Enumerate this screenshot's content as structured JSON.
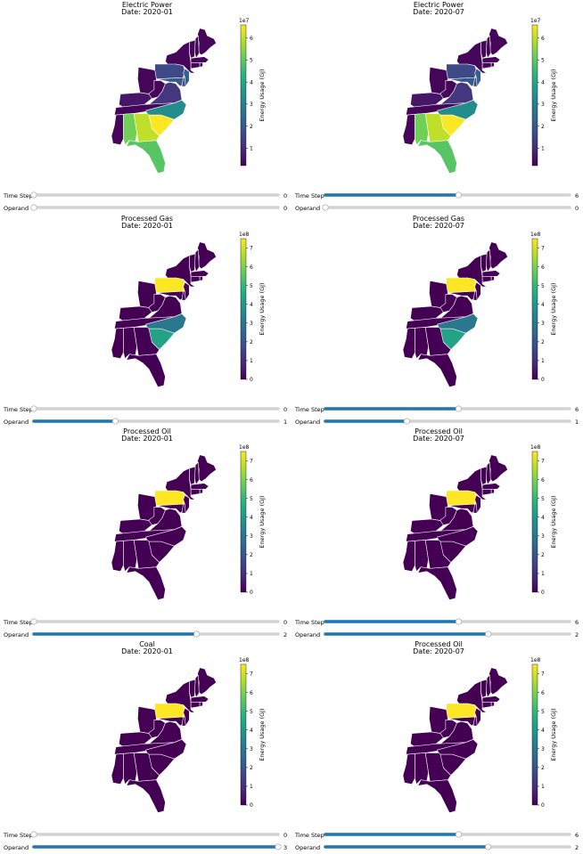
{
  "colorbar_label": "Energy Usage (GJ)",
  "slider_labels": {
    "time_step": "Time Step",
    "operand": "Operand"
  },
  "colors": {
    "background": "#ffffff",
    "state_border": "#ffffff",
    "slider_track": "#d3d3d3",
    "slider_fill": "#1f77b4",
    "slider_handle": "#ffffff",
    "slider_handle_edge": "#a0a0a0",
    "viridis": [
      "#440154",
      "#482878",
      "#3e4a89",
      "#31688e",
      "#26828e",
      "#1f9e89",
      "#35b779",
      "#6ece58",
      "#b5de2b",
      "#fde725"
    ]
  },
  "chart_data": [
    {
      "type": "heatmap",
      "title": "Electric Power",
      "date": "Date: 2020-01",
      "colorbar": {
        "exponent": "1e7",
        "ticks": [
          "1",
          "2",
          "3",
          "4",
          "5",
          "6"
        ],
        "min": 0.2,
        "max": 6.6
      },
      "states": {
        "PA": 1.6,
        "VA": 1.2,
        "KY": 0.6,
        "NJ": 2.2,
        "DE": 1.6,
        "MD": 2.0,
        "NC": 3.3,
        "SC": 6.6,
        "GA": 6.0,
        "AL": 5.2,
        "FL": 4.9
      },
      "default_value": 0.3,
      "sliders": {
        "time_step": 0,
        "operand": 0
      }
    },
    {
      "type": "heatmap",
      "title": "Electric Power",
      "date": "Date: 2020-07",
      "colorbar": {
        "exponent": "1e7",
        "ticks": [
          "1",
          "2",
          "3",
          "4",
          "5",
          "6"
        ],
        "min": 0.2,
        "max": 6.6
      },
      "states": {
        "PA": 1.6,
        "VA": 1.2,
        "KY": 0.6,
        "NJ": 2.2,
        "DE": 1.6,
        "MD": 2.0,
        "NC": 3.3,
        "SC": 6.6,
        "GA": 6.0,
        "AL": 5.2,
        "FL": 4.9
      },
      "default_value": 0.3,
      "sliders": {
        "time_step": 6,
        "operand": 0
      }
    },
    {
      "type": "heatmap",
      "title": "Processed Gas",
      "date": "Date: 2020-01",
      "colorbar": {
        "exponent": "1e8",
        "ticks": [
          "0",
          "1",
          "2",
          "3",
          "4",
          "5",
          "6",
          "7"
        ],
        "min": 0,
        "max": 7.5
      },
      "states": {
        "PA": 7.5,
        "NC": 3.0,
        "SC": 4.3
      },
      "default_value": 0,
      "sliders": {
        "time_step": 0,
        "operand": 1
      }
    },
    {
      "type": "heatmap",
      "title": "Processed Gas",
      "date": "Date: 2020-07",
      "colorbar": {
        "exponent": "1e8",
        "ticks": [
          "0",
          "1",
          "2",
          "3",
          "4",
          "5",
          "6",
          "7"
        ],
        "min": 0,
        "max": 7.5
      },
      "states": {
        "PA": 7.5,
        "NC": 3.0,
        "SC": 4.3
      },
      "default_value": 0,
      "sliders": {
        "time_step": 6,
        "operand": 1
      }
    },
    {
      "type": "heatmap",
      "title": "Processed Oil",
      "date": "Date: 2020-01",
      "colorbar": {
        "exponent": "1e8",
        "ticks": [
          "0",
          "1",
          "2",
          "3",
          "4",
          "5",
          "6",
          "7"
        ],
        "min": 0,
        "max": 7.5
      },
      "states": {
        "PA": 7.5
      },
      "default_value": 0,
      "sliders": {
        "time_step": 0,
        "operand": 2
      }
    },
    {
      "type": "heatmap",
      "title": "Processed Oil",
      "date": "Date: 2020-07",
      "colorbar": {
        "exponent": "1e8",
        "ticks": [
          "0",
          "1",
          "2",
          "3",
          "4",
          "5",
          "6",
          "7"
        ],
        "min": 0,
        "max": 7.5
      },
      "states": {
        "PA": 7.5
      },
      "default_value": 0,
      "sliders": {
        "time_step": 6,
        "operand": 2
      }
    },
    {
      "type": "heatmap",
      "title": "Coal",
      "date": "Date: 2020-01",
      "colorbar": {
        "exponent": "1e8",
        "ticks": [
          "0",
          "1",
          "2",
          "3",
          "4",
          "5",
          "6",
          "7"
        ],
        "min": 0,
        "max": 7.5
      },
      "states": {
        "PA": 7.5
      },
      "default_value": 0,
      "sliders": {
        "time_step": 0,
        "operand": 3
      }
    },
    {
      "type": "heatmap",
      "title": "Processed Oil",
      "date": "Date: 2020-07",
      "colorbar": {
        "exponent": "1e8",
        "ticks": [
          "0",
          "1",
          "2",
          "3",
          "4",
          "5",
          "6",
          "7"
        ],
        "min": 0,
        "max": 7.5
      },
      "states": {
        "PA": 7.5
      },
      "default_value": 0,
      "sliders": {
        "time_step": 6,
        "operand": 2
      }
    }
  ],
  "slider_ranges": {
    "time_step_max": 11,
    "operand_max": 3
  }
}
